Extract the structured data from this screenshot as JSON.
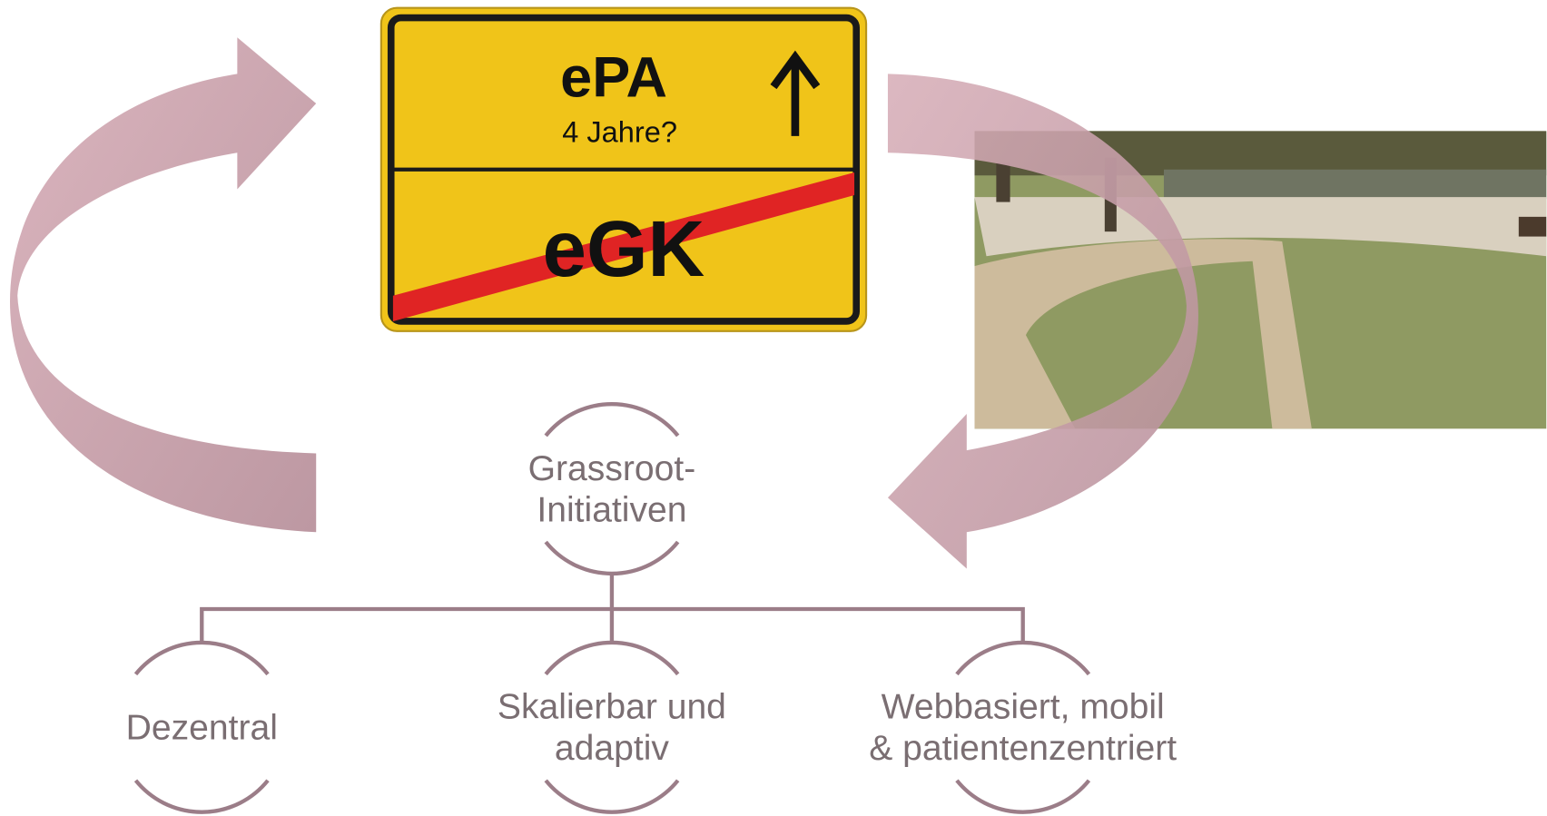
{
  "sign": {
    "top": "ePA",
    "subtitle": "4 Jahre?",
    "crossed": "eGK"
  },
  "nodes": [
    {
      "lines": [
        "Grassroot-",
        "Initiativen"
      ]
    },
    {
      "lines": [
        "Dezentral"
      ]
    },
    {
      "lines": [
        "Skalierbar und",
        "adaptiv"
      ]
    },
    {
      "lines": [
        "Webbasiert, mobil",
        "& patientenzentriert"
      ]
    }
  ]
}
